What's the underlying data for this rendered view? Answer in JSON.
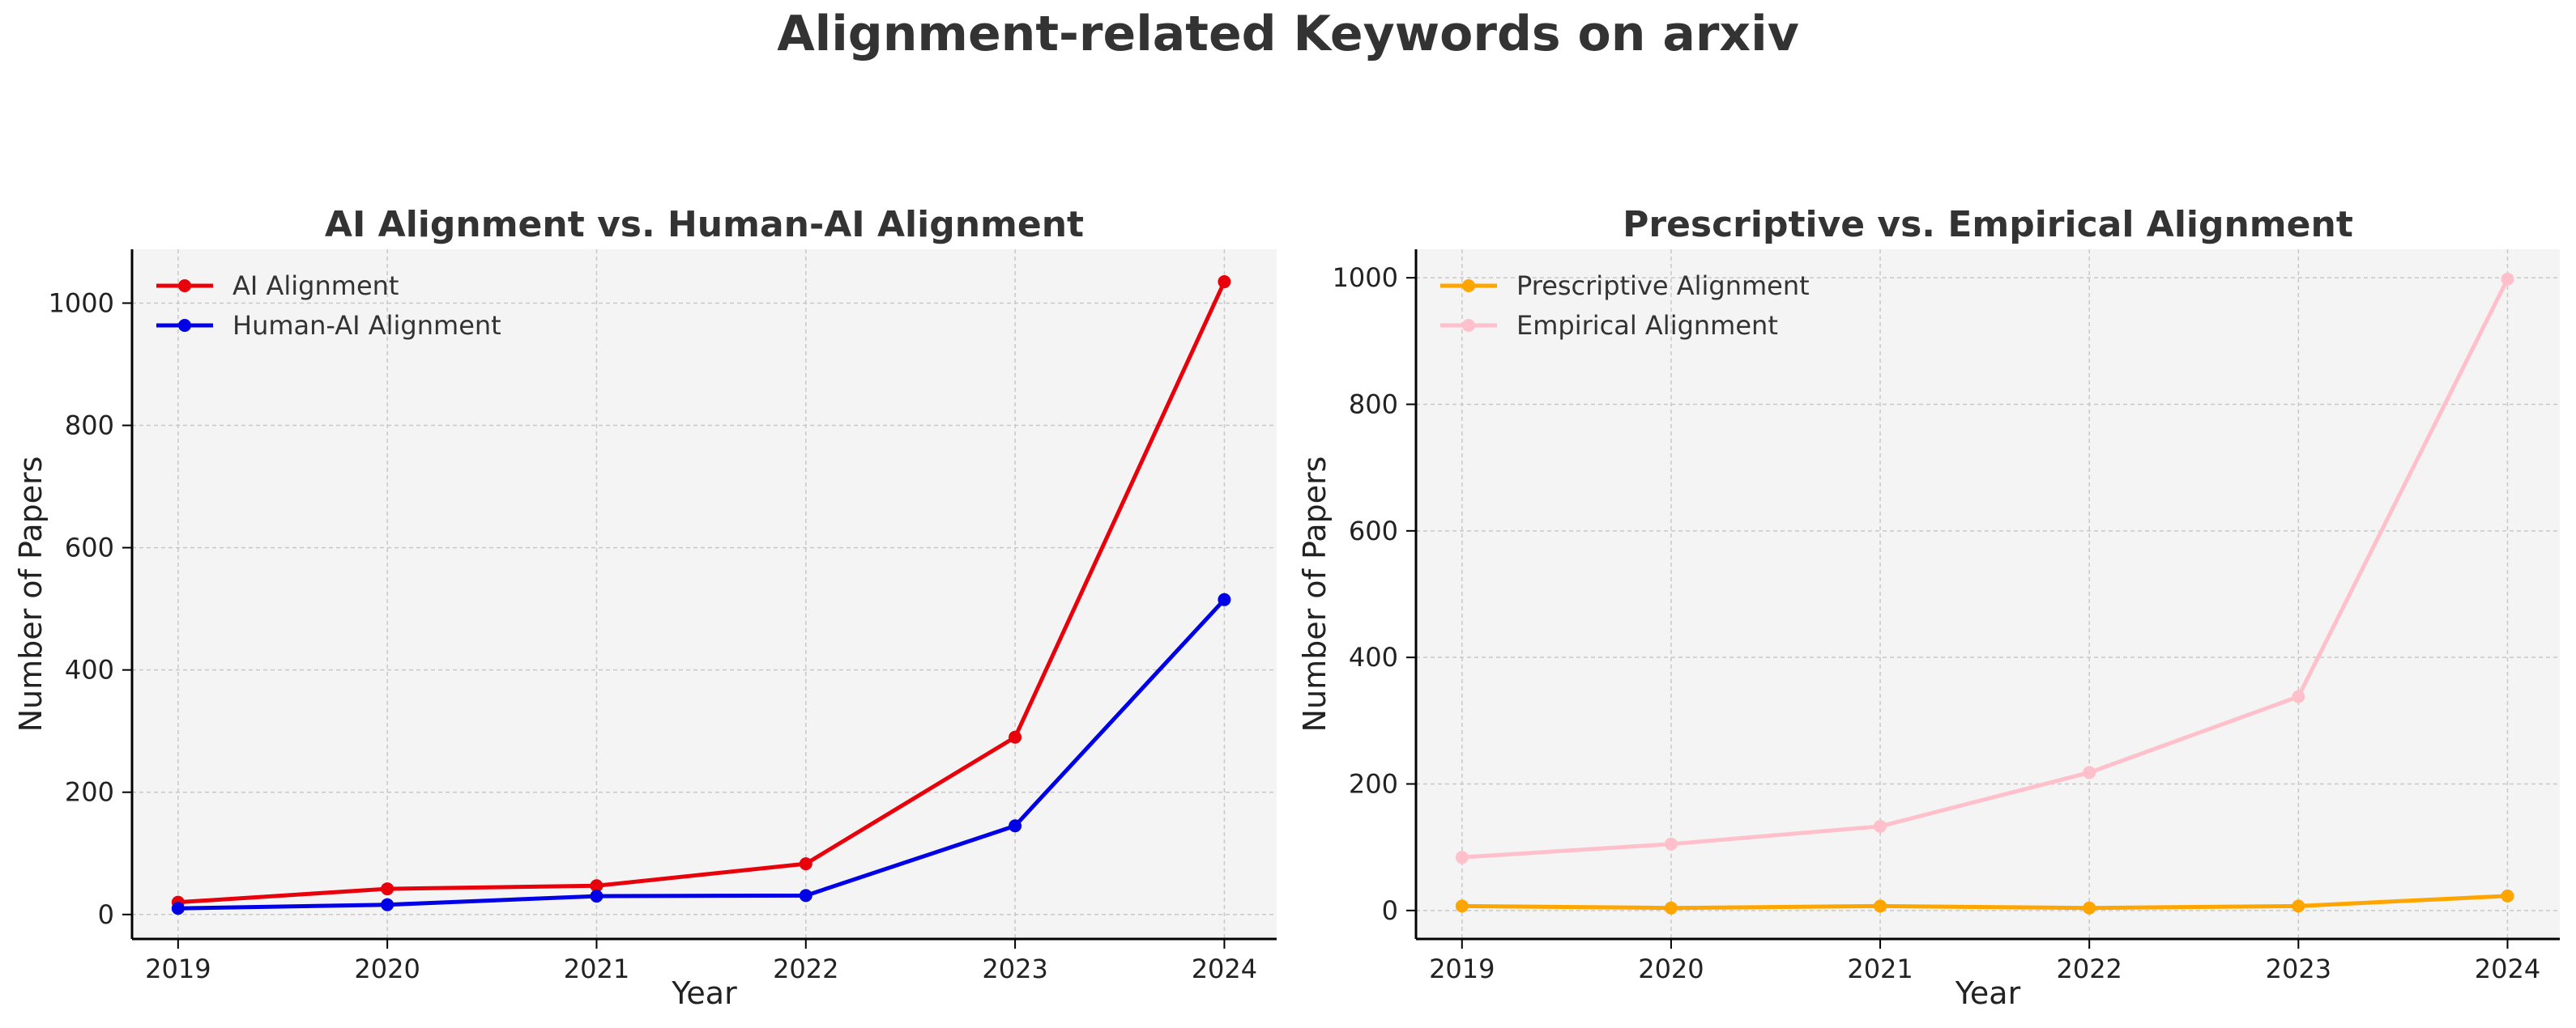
{
  "figure": {
    "title": "Alignment-related Keywords on arxiv"
  },
  "chart_data": [
    {
      "type": "line",
      "title": "AI Alignment vs. Human-AI Alignment",
      "xlabel": "Year",
      "ylabel": "Number of Papers",
      "x": [
        2019,
        2020,
        2021,
        2022,
        2023,
        2024
      ],
      "xlim": [
        2018.78,
        2024.25
      ],
      "ylim": [
        -40,
        1088
      ],
      "yticks": [
        0,
        200,
        400,
        600,
        800,
        1000
      ],
      "grid": true,
      "legend": "top-left",
      "series": [
        {
          "name": "AI Alignment",
          "color": "#e8000b",
          "values": [
            20,
            42,
            47,
            83,
            290,
            1035
          ]
        },
        {
          "name": "Human-AI Alignment",
          "color": "#0000e6",
          "values": [
            10,
            16,
            30,
            31,
            145,
            515
          ]
        }
      ]
    },
    {
      "type": "line",
      "title": "Prescriptive vs. Empirical Alignment",
      "xlabel": "Year",
      "ylabel": "Number of Papers",
      "x": [
        2019,
        2020,
        2021,
        2022,
        2023,
        2024
      ],
      "xlim": [
        2018.78,
        2024.25
      ],
      "ylim": [
        -45,
        1045
      ],
      "yticks": [
        0,
        200,
        400,
        600,
        800,
        1000
      ],
      "grid": true,
      "legend": "top-left",
      "series": [
        {
          "name": "Prescriptive Alignment",
          "color": "#ffa500",
          "values": [
            7,
            4,
            7,
            4,
            7,
            23
          ]
        },
        {
          "name": "Empirical Alignment",
          "color": "#ffc0cb",
          "values": [
            84,
            105,
            133,
            218,
            338,
            998
          ]
        }
      ]
    }
  ]
}
